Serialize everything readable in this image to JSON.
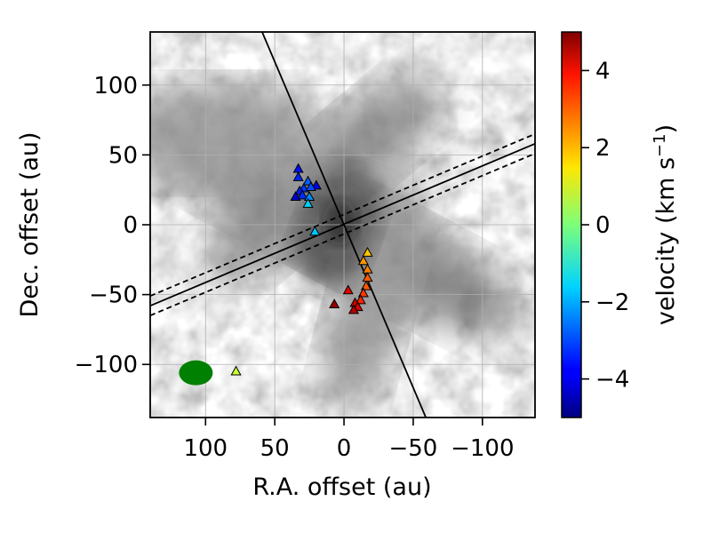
{
  "chart_data": {
    "type": "scatter",
    "xlabel": "R.A. offset (au)",
    "ylabel": "Dec. offset (au)",
    "xlim": [
      140,
      -138
    ],
    "ylim": [
      -138,
      138
    ],
    "xticks": [
      100,
      50,
      0,
      -50,
      -100
    ],
    "xtick_labels": [
      "100",
      "50",
      "0",
      "−50",
      "−100"
    ],
    "yticks": [
      100,
      50,
      0,
      -50,
      -100
    ],
    "ytick_labels": [
      "100",
      "50",
      "0",
      "−50",
      "−100"
    ],
    "grid": true,
    "background": "grayscale continuum emission image",
    "colorbar": {
      "label": "velocity (km s",
      "label_sup": "−1",
      "label_close": ")",
      "range": [
        -5,
        5
      ],
      "ticks": [
        4,
        2,
        0,
        -2,
        -4
      ],
      "tick_labels": [
        "4",
        "2",
        "0",
        "−2",
        "−4"
      ],
      "colormap": "jet"
    },
    "lines": [
      {
        "style": "solid",
        "x": [
          60,
          -60
        ],
        "y": [
          140,
          -140
        ]
      },
      {
        "style": "solid",
        "x": [
          140,
          -138
        ],
        "y": [
          -58,
          58
        ]
      },
      {
        "style": "dashed",
        "x": [
          140,
          -138
        ],
        "y": [
          -51,
          65
        ]
      },
      {
        "style": "dashed",
        "x": [
          140,
          -138
        ],
        "y": [
          -65,
          51
        ]
      }
    ],
    "beam": {
      "x": 107,
      "y": -106,
      "color": "#008000"
    },
    "points": [
      {
        "x": 33,
        "y": 40,
        "v": -3.6
      },
      {
        "x": 33,
        "y": 34,
        "v": -3.4
      },
      {
        "x": 26,
        "y": 31,
        "v": -2.8
      },
      {
        "x": 29,
        "y": 26,
        "v": -3.2
      },
      {
        "x": 32,
        "y": 24,
        "v": -3.5
      },
      {
        "x": 20,
        "y": 28,
        "v": -4.0
      },
      {
        "x": 24,
        "y": 27,
        "v": -3.0
      },
      {
        "x": 30,
        "y": 21,
        "v": -3.3
      },
      {
        "x": 25,
        "y": 20,
        "v": -2.4
      },
      {
        "x": 35,
        "y": 20,
        "v": -4.3
      },
      {
        "x": 26,
        "y": 15,
        "v": -1.7
      },
      {
        "x": 21,
        "y": -5,
        "v": -1.8
      },
      {
        "x": -17,
        "y": -20,
        "v": 1.8
      },
      {
        "x": -14,
        "y": -26,
        "v": 2.3
      },
      {
        "x": -17,
        "y": -32,
        "v": 2.5
      },
      {
        "x": -17,
        "y": -38,
        "v": 2.9
      },
      {
        "x": -16,
        "y": -44,
        "v": 2.9
      },
      {
        "x": -14,
        "y": -49,
        "v": 3.2
      },
      {
        "x": -12,
        "y": -54,
        "v": 3.4
      },
      {
        "x": -3,
        "y": -47,
        "v": 4.0
      },
      {
        "x": -8,
        "y": -56,
        "v": 4.3
      },
      {
        "x": 7,
        "y": -57,
        "v": 4.8
      },
      {
        "x": -10,
        "y": -59,
        "v": 4.1
      },
      {
        "x": -7,
        "y": -61,
        "v": 4.5
      },
      {
        "x": 78,
        "y": -105,
        "v": 0.7
      }
    ]
  }
}
